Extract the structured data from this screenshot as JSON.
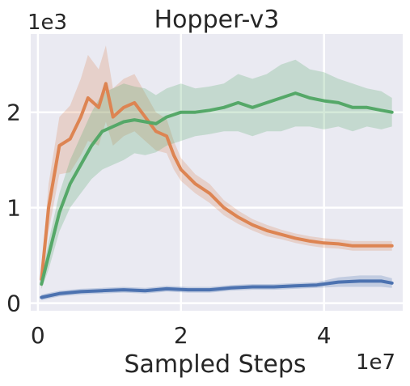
{
  "chart_data": {
    "type": "line",
    "title": "Hopper-v3",
    "xlabel": "Sampled Steps",
    "ylabel": "",
    "x_scale_label": "1e7",
    "y_scale_label": "1e3",
    "xlim": [
      -0.1,
      5.1
    ],
    "ylim": [
      -0.08,
      2.82
    ],
    "xticks": [
      0,
      2,
      4
    ],
    "xtick_labels": [
      "0",
      "2",
      "4"
    ],
    "yticks": [
      0,
      1,
      2
    ],
    "ytick_labels": [
      "0",
      "1",
      "2"
    ],
    "grid": true,
    "legend": "none",
    "series": [
      {
        "color": "#4c72b0",
        "x": [
          0.05,
          0.3,
          0.6,
          0.9,
          1.2,
          1.5,
          1.8,
          2.1,
          2.4,
          2.7,
          3.0,
          3.3,
          3.6,
          3.9,
          4.2,
          4.5,
          4.8,
          4.95
        ],
        "y": [
          0.06,
          0.1,
          0.12,
          0.13,
          0.14,
          0.13,
          0.15,
          0.14,
          0.14,
          0.16,
          0.17,
          0.17,
          0.18,
          0.19,
          0.22,
          0.23,
          0.23,
          0.21
        ],
        "band": [
          0.03,
          0.03,
          0.03,
          0.03,
          0.03,
          0.03,
          0.03,
          0.03,
          0.03,
          0.03,
          0.03,
          0.03,
          0.03,
          0.03,
          0.05,
          0.06,
          0.06,
          0.05
        ]
      },
      {
        "color": "#dd8452",
        "x": [
          0.05,
          0.15,
          0.3,
          0.45,
          0.6,
          0.7,
          0.85,
          0.95,
          1.05,
          1.2,
          1.35,
          1.5,
          1.65,
          1.8,
          1.9,
          2.0,
          2.2,
          2.4,
          2.6,
          2.8,
          3.0,
          3.2,
          3.4,
          3.6,
          3.8,
          4.0,
          4.2,
          4.4,
          4.6,
          4.8,
          4.95
        ],
        "y": [
          0.25,
          1.0,
          1.65,
          1.72,
          1.95,
          2.15,
          2.05,
          2.3,
          1.95,
          2.05,
          2.1,
          1.95,
          1.8,
          1.75,
          1.55,
          1.4,
          1.25,
          1.15,
          1.0,
          0.9,
          0.82,
          0.76,
          0.72,
          0.68,
          0.65,
          0.63,
          0.62,
          0.6,
          0.6,
          0.6,
          0.6
        ],
        "band": [
          0.1,
          0.25,
          0.3,
          0.35,
          0.4,
          0.45,
          0.4,
          0.4,
          0.3,
          0.3,
          0.3,
          0.25,
          0.2,
          0.18,
          0.15,
          0.12,
          0.1,
          0.1,
          0.08,
          0.07,
          0.06,
          0.06,
          0.05,
          0.05,
          0.05,
          0.05,
          0.05,
          0.05,
          0.05,
          0.05,
          0.05
        ]
      },
      {
        "color": "#55a868",
        "x": [
          0.05,
          0.15,
          0.3,
          0.45,
          0.6,
          0.75,
          0.9,
          1.05,
          1.2,
          1.35,
          1.5,
          1.65,
          1.8,
          2.0,
          2.2,
          2.4,
          2.6,
          2.8,
          3.0,
          3.2,
          3.4,
          3.6,
          3.8,
          4.0,
          4.2,
          4.4,
          4.6,
          4.8,
          4.95
        ],
        "y": [
          0.2,
          0.5,
          0.95,
          1.25,
          1.45,
          1.65,
          1.8,
          1.85,
          1.9,
          1.92,
          1.9,
          1.88,
          1.95,
          2.0,
          2.0,
          2.02,
          2.05,
          2.1,
          2.05,
          2.1,
          2.15,
          2.2,
          2.15,
          2.12,
          2.1,
          2.05,
          2.05,
          2.02,
          2.0
        ],
        "band": [
          0.05,
          0.15,
          0.2,
          0.25,
          0.3,
          0.35,
          0.4,
          0.4,
          0.4,
          0.35,
          0.35,
          0.3,
          0.3,
          0.3,
          0.25,
          0.25,
          0.25,
          0.3,
          0.3,
          0.3,
          0.35,
          0.35,
          0.3,
          0.3,
          0.25,
          0.25,
          0.2,
          0.2,
          0.15
        ]
      }
    ]
  }
}
